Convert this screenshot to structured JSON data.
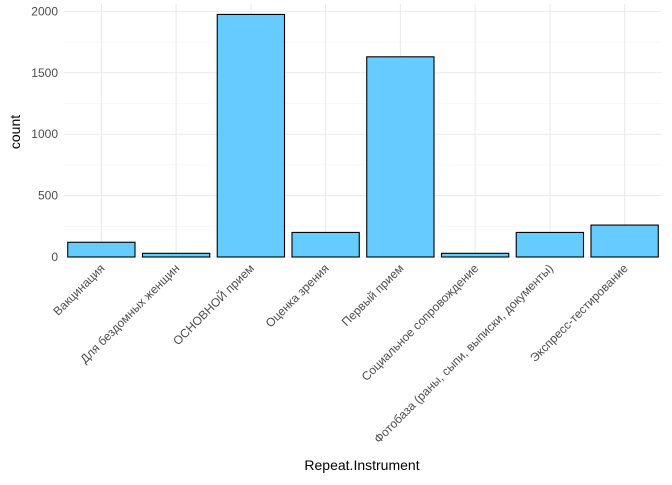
{
  "chart_data": {
    "type": "bar",
    "title": "",
    "xlabel": "Repeat.Instrument",
    "ylabel": "count",
    "categories": [
      "Вакцинация",
      "Для бездомных женщин",
      "ОСНОВНОЙ прием",
      "Оценка зрения",
      "Первый прием",
      "Социальное сопровождение",
      "Фотобаза (раны, сыпи, выписки, документы)",
      "Экспресс-тестирование"
    ],
    "values": [
      120,
      30,
      1975,
      200,
      1630,
      30,
      200,
      260
    ],
    "ylim": [
      0,
      2060
    ],
    "yticks": [
      0,
      500,
      1000,
      1500,
      2000
    ],
    "grid": true,
    "legend": "none",
    "bar_color": "#66ccff",
    "bar_outline": "#000000"
  }
}
